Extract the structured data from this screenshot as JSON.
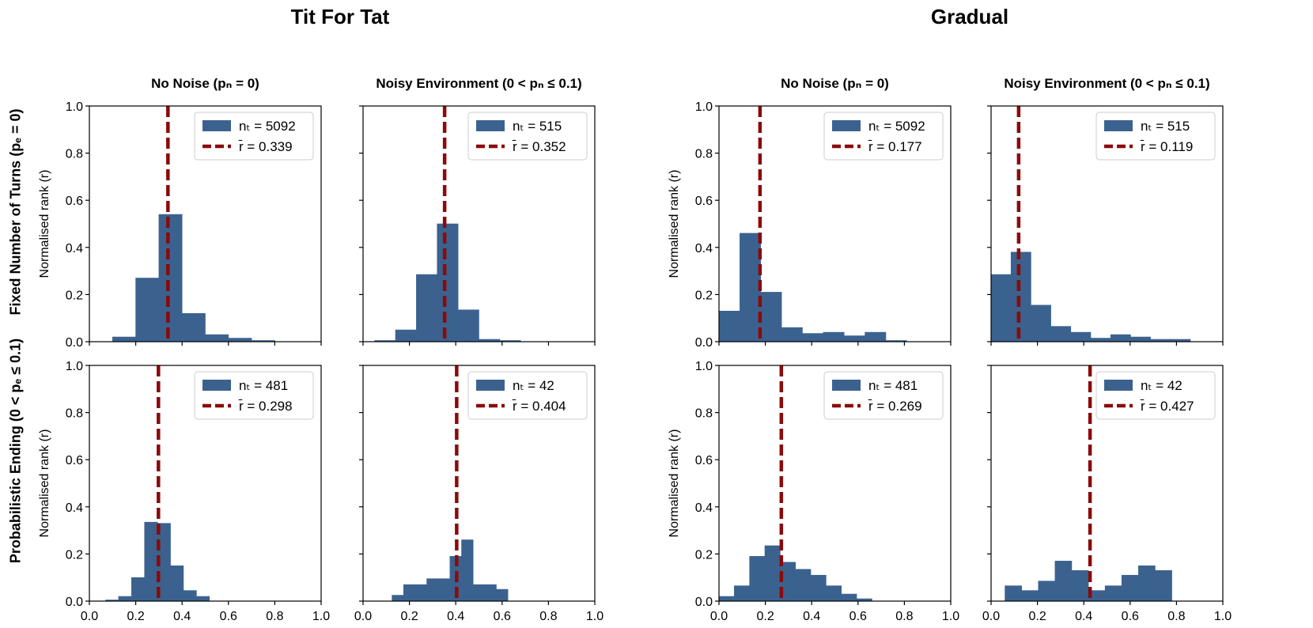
{
  "figure": {
    "group_titles": [
      "Tit For Tat",
      "Gradual"
    ],
    "column_titles": [
      "No Noise (pₙ = 0)",
      "Noisy Environment (0 < pₙ ≤ 0.1)",
      "No Noise (pₙ = 0)",
      "Noisy Environment (0 < pₙ ≤ 0.1)"
    ],
    "row_labels": [
      "Fixed Number of Turns (pₑ = 0)",
      "Probabilistic Ending (0 < pₑ ≤ 0.1)"
    ],
    "ylabel": "Normalised rank (r)",
    "colors": {
      "bar": "#3b628f",
      "mean_line": "#8b0a0a",
      "axis": "#000000"
    }
  },
  "chart_data": [
    {
      "type": "bar",
      "group": "Tit For Tat",
      "column": "No Noise (pₙ = 0)",
      "row": "Fixed Number of Turns (pₑ = 0)",
      "bin_edges": [
        0.1,
        0.2,
        0.3,
        0.4,
        0.5,
        0.6,
        0.7,
        0.8,
        0.9
      ],
      "values": [
        0.02,
        0.27,
        0.54,
        0.12,
        0.03,
        0.015,
        0.005,
        0.0
      ],
      "mean": 0.339,
      "n_label": "nₜ = 5092",
      "mean_label": "r̄ = 0.339",
      "xlim": [
        0,
        1
      ],
      "ylim": [
        0,
        1
      ],
      "xticks": [
        "0.0",
        "0.2",
        "0.4",
        "0.6",
        "0.8",
        "1.0"
      ]
    },
    {
      "type": "bar",
      "group": "Tit For Tat",
      "column": "Noisy Environment (0 < pₙ ≤ 0.1)",
      "row": "Fixed Number of Turns (pₑ = 0)",
      "bin_edges": [
        0.05,
        0.14,
        0.23,
        0.32,
        0.41,
        0.5,
        0.59,
        0.68,
        0.77
      ],
      "values": [
        0.005,
        0.05,
        0.285,
        0.5,
        0.135,
        0.01,
        0.005,
        0.0
      ],
      "mean": 0.352,
      "n_label": "nₜ = 515",
      "mean_label": "r̄ = 0.352",
      "xlim": [
        0,
        1
      ],
      "ylim": [
        0,
        1
      ],
      "xticks": [
        "0.0",
        "0.2",
        "0.4",
        "0.6",
        "0.8",
        "1.0"
      ]
    },
    {
      "type": "bar",
      "group": "Gradual",
      "column": "No Noise (pₙ = 0)",
      "row": "Fixed Number of Turns (pₑ = 0)",
      "bin_edges": [
        0.0,
        0.09,
        0.18,
        0.27,
        0.36,
        0.45,
        0.54,
        0.63,
        0.72,
        0.81,
        0.9
      ],
      "values": [
        0.13,
        0.46,
        0.21,
        0.06,
        0.035,
        0.04,
        0.025,
        0.04,
        0.005,
        0.0
      ],
      "mean": 0.177,
      "n_label": "nₜ = 5092",
      "mean_label": "r̄ = 0.177",
      "xlim": [
        0,
        1
      ],
      "ylim": [
        0,
        1
      ],
      "xticks": [
        "0.0",
        "0.2",
        "0.4",
        "0.6",
        "0.8",
        "1.0"
      ]
    },
    {
      "type": "bar",
      "group": "Gradual",
      "column": "Noisy Environment (0 < pₙ ≤ 0.1)",
      "row": "Fixed Number of Turns (pₑ = 0)",
      "bin_edges": [
        0.0,
        0.086,
        0.172,
        0.258,
        0.344,
        0.43,
        0.516,
        0.602,
        0.688,
        0.774,
        0.86
      ],
      "values": [
        0.285,
        0.38,
        0.155,
        0.065,
        0.04,
        0.015,
        0.03,
        0.02,
        0.01,
        0.01
      ],
      "mean": 0.119,
      "n_label": "nₜ = 515",
      "mean_label": "r̄ = 0.119",
      "xlim": [
        0,
        1
      ],
      "ylim": [
        0,
        1
      ],
      "xticks": [
        "0.0",
        "0.2",
        "0.4",
        "0.6",
        "0.8",
        "1.0"
      ]
    },
    {
      "type": "bar",
      "group": "Tit For Tat",
      "column": "No Noise (pₙ = 0)",
      "row": "Probabilistic Ending (0 < pₑ ≤ 0.1)",
      "bin_edges": [
        0.07,
        0.126,
        0.182,
        0.238,
        0.294,
        0.35,
        0.406,
        0.462,
        0.518
      ],
      "values": [
        0.005,
        0.02,
        0.1,
        0.335,
        0.33,
        0.15,
        0.045,
        0.02
      ],
      "mean": 0.298,
      "n_label": "nₜ = 481",
      "mean_label": "r̄ = 0.298",
      "xlim": [
        0,
        1
      ],
      "ylim": [
        0,
        1
      ],
      "xticks": [
        "0.0",
        "0.2",
        "0.4",
        "0.6",
        "0.8",
        "1.0"
      ]
    },
    {
      "type": "bar",
      "group": "Tit For Tat",
      "column": "Noisy Environment (0 < pₙ ≤ 0.1)",
      "row": "Probabilistic Ending (0 < pₑ ≤ 0.1)",
      "bin_edges": [
        0.125,
        0.175,
        0.225,
        0.275,
        0.325,
        0.375,
        0.425,
        0.475,
        0.525,
        0.575,
        0.625
      ],
      "values": [
        0.025,
        0.07,
        0.07,
        0.095,
        0.095,
        0.19,
        0.26,
        0.07,
        0.07,
        0.05
      ],
      "mean": 0.404,
      "n_label": "nₜ = 42",
      "mean_label": "r̄ = 0.404",
      "xlim": [
        0,
        1
      ],
      "ylim": [
        0,
        1
      ],
      "xticks": [
        "0.0",
        "0.2",
        "0.4",
        "0.6",
        "0.8",
        "1.0"
      ]
    },
    {
      "type": "bar",
      "group": "Gradual",
      "column": "No Noise (pₙ = 0)",
      "row": "Probabilistic Ending (0 < pₑ ≤ 0.1)",
      "bin_edges": [
        0.0,
        0.066,
        0.132,
        0.198,
        0.264,
        0.33,
        0.396,
        0.462,
        0.528,
        0.594,
        0.66
      ],
      "values": [
        0.02,
        0.065,
        0.19,
        0.235,
        0.165,
        0.135,
        0.11,
        0.065,
        0.03,
        0.01
      ],
      "mean": 0.269,
      "n_label": "nₜ = 481",
      "mean_label": "r̄ = 0.269",
      "xlim": [
        0,
        1
      ],
      "ylim": [
        0,
        1
      ],
      "xticks": [
        "0.0",
        "0.2",
        "0.4",
        "0.6",
        "0.8",
        "1.0"
      ]
    },
    {
      "type": "bar",
      "group": "Gradual",
      "column": "Noisy Environment (0 < pₙ ≤ 0.1)",
      "row": "Probabilistic Ending (0 < pₑ ≤ 0.1)",
      "bin_edges": [
        0.06,
        0.132,
        0.204,
        0.276,
        0.348,
        0.42,
        0.492,
        0.564,
        0.636,
        0.708,
        0.78
      ],
      "values": [
        0.065,
        0.045,
        0.085,
        0.17,
        0.13,
        0.045,
        0.065,
        0.11,
        0.15,
        0.13
      ],
      "mean": 0.427,
      "n_label": "nₜ = 42",
      "mean_label": "r̄ = 0.427",
      "xlim": [
        0,
        1
      ],
      "ylim": [
        0,
        1
      ],
      "xticks": [
        "0.0",
        "0.2",
        "0.4",
        "0.6",
        "0.8",
        "1.0"
      ]
    }
  ]
}
